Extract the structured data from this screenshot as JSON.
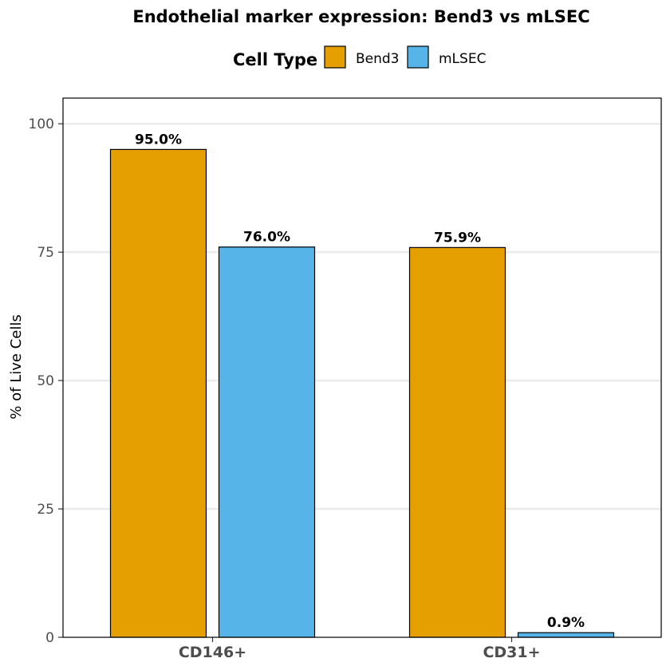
{
  "chart_data": {
    "type": "bar",
    "title": "Endothelial marker expression: Bend3 vs mLSEC",
    "xlabel": "",
    "ylabel": "% of Live Cells",
    "categories": [
      "CD146+",
      "CD31+"
    ],
    "series": [
      {
        "name": "Bend3",
        "color": "#E69F00",
        "values": [
          95.0,
          75.9
        ],
        "labels": [
          "95.0%",
          "75.9%"
        ]
      },
      {
        "name": "mLSEC",
        "color": "#56B4E9",
        "values": [
          76.0,
          0.9
        ],
        "labels": [
          "76.0%",
          "0.9%"
        ]
      }
    ],
    "ylim": [
      0,
      105
    ],
    "yticks": [
      0,
      25,
      50,
      75,
      100
    ],
    "ytick_labels": [
      "0",
      "25",
      "50",
      "75",
      "100"
    ],
    "grid": true,
    "legend": {
      "title": "Cell Type",
      "position": "top"
    }
  }
}
